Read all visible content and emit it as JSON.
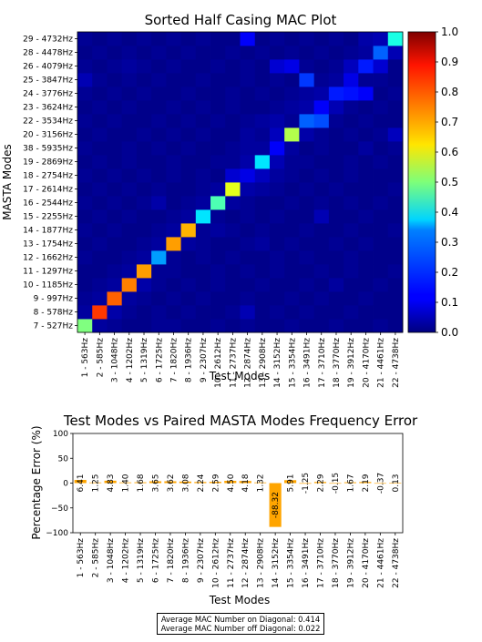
{
  "chart_data": [
    {
      "type": "heatmap",
      "title": "Sorted Half Casing MAC Plot",
      "xlabel": "Test Modes",
      "ylabel": "MASTA Modes",
      "x_categories": [
        "1 - 563Hz",
        "2 - 585Hz",
        "3 - 1048Hz",
        "4 - 1202Hz",
        "5 - 1319Hz",
        "6 - 1725Hz",
        "7 - 1820Hz",
        "8 - 1936Hz",
        "9 - 2307Hz",
        "10 - 2612Hz",
        "11 - 2737Hz",
        "12 - 2874Hz",
        "13 - 2908Hz",
        "14 - 3152Hz",
        "15 - 3354Hz",
        "16 - 3491Hz",
        "17 - 3710Hz",
        "18 - 3770Hz",
        "19 - 3912Hz",
        "20 - 4170Hz",
        "21 - 4461Hz",
        "22 - 4738Hz"
      ],
      "y_categories": [
        "7 - 527Hz",
        "8 - 578Hz",
        "9 - 997Hz",
        "10 - 1185Hz",
        "11 - 1297Hz",
        "12 - 1662Hz",
        "13 - 1754Hz",
        "14 - 1877Hz",
        "15 - 2255Hz",
        "16 - 2544Hz",
        "17 - 2614Hz",
        "18 - 2754Hz",
        "19 - 2869Hz",
        "38 - 5935Hz",
        "20 - 3156Hz",
        "22 - 3534Hz",
        "23 - 3624Hz",
        "24 - 3776Hz",
        "25 - 3847Hz",
        "26 - 4079Hz",
        "28 - 4478Hz",
        "29 - 4732Hz"
      ],
      "values": [
        [
          0.5,
          0.03,
          0.02,
          0.01,
          0.01,
          0.02,
          0.02,
          0.01,
          0.01,
          0.02,
          0.01,
          0.02,
          0.01,
          0.01,
          0.02,
          0.01,
          0.01,
          0.02,
          0.01,
          0.01,
          0.02,
          0.01
        ],
        [
          0.03,
          0.82,
          0.04,
          0.02,
          0.01,
          0.02,
          0.01,
          0.02,
          0.01,
          0.01,
          0.02,
          0.05,
          0.01,
          0.02,
          0.01,
          0.02,
          0.01,
          0.01,
          0.02,
          0.01,
          0.01,
          0.01
        ],
        [
          0.02,
          0.03,
          0.78,
          0.03,
          0.02,
          0.01,
          0.02,
          0.01,
          0.02,
          0.01,
          0.01,
          0.02,
          0.01,
          0.01,
          0.02,
          0.01,
          0.02,
          0.01,
          0.01,
          0.02,
          0.01,
          0.01
        ],
        [
          0.01,
          0.02,
          0.03,
          0.75,
          0.04,
          0.02,
          0.01,
          0.02,
          0.01,
          0.02,
          0.01,
          0.01,
          0.02,
          0.01,
          0.01,
          0.02,
          0.01,
          0.03,
          0.01,
          0.01,
          0.02,
          0.01
        ],
        [
          0.01,
          0.01,
          0.02,
          0.03,
          0.72,
          0.02,
          0.02,
          0.01,
          0.01,
          0.02,
          0.01,
          0.02,
          0.01,
          0.02,
          0.01,
          0.01,
          0.02,
          0.01,
          0.02,
          0.01,
          0.01,
          0.02
        ],
        [
          0.02,
          0.01,
          0.01,
          0.02,
          0.03,
          0.28,
          0.02,
          0.01,
          0.02,
          0.01,
          0.02,
          0.01,
          0.01,
          0.02,
          0.01,
          0.02,
          0.01,
          0.01,
          0.02,
          0.01,
          0.01,
          0.01
        ],
        [
          0.01,
          0.02,
          0.01,
          0.01,
          0.02,
          0.03,
          0.72,
          0.03,
          0.02,
          0.01,
          0.01,
          0.02,
          0.03,
          0.01,
          0.02,
          0.01,
          0.01,
          0.02,
          0.01,
          0.02,
          0.01,
          0.01
        ],
        [
          0.02,
          0.01,
          0.02,
          0.01,
          0.01,
          0.02,
          0.03,
          0.7,
          0.02,
          0.03,
          0.02,
          0.01,
          0.02,
          0.01,
          0.01,
          0.02,
          0.01,
          0.01,
          0.02,
          0.01,
          0.01,
          0.02
        ],
        [
          0.01,
          0.02,
          0.01,
          0.02,
          0.01,
          0.01,
          0.02,
          0.03,
          0.35,
          0.02,
          0.01,
          0.02,
          0.01,
          0.02,
          0.01,
          0.01,
          0.05,
          0.01,
          0.01,
          0.02,
          0.01,
          0.01
        ],
        [
          0.02,
          0.01,
          0.02,
          0.01,
          0.02,
          0.04,
          0.01,
          0.02,
          0.03,
          0.45,
          0.03,
          0.02,
          0.01,
          0.01,
          0.02,
          0.01,
          0.02,
          0.01,
          0.02,
          0.01,
          0.02,
          0.01
        ],
        [
          0.01,
          0.02,
          0.01,
          0.02,
          0.01,
          0.02,
          0.01,
          0.01,
          0.02,
          0.03,
          0.6,
          0.04,
          0.03,
          0.02,
          0.01,
          0.02,
          0.01,
          0.02,
          0.01,
          0.01,
          0.01,
          0.02
        ],
        [
          0.02,
          0.01,
          0.02,
          0.01,
          0.02,
          0.01,
          0.02,
          0.01,
          0.02,
          0.01,
          0.08,
          0.1,
          0.06,
          0.03,
          0.02,
          0.01,
          0.02,
          0.01,
          0.02,
          0.01,
          0.01,
          0.01
        ],
        [
          0.01,
          0.02,
          0.01,
          0.02,
          0.01,
          0.01,
          0.02,
          0.01,
          0.01,
          0.02,
          0.02,
          0.04,
          0.35,
          0.05,
          0.02,
          0.02,
          0.01,
          0.01,
          0.02,
          0.01,
          0.02,
          0.01
        ],
        [
          0.02,
          0.01,
          0.01,
          0.02,
          0.01,
          0.02,
          0.01,
          0.02,
          0.01,
          0.01,
          0.02,
          0.03,
          0.03,
          0.12,
          0.03,
          0.01,
          0.02,
          0.01,
          0.01,
          0.03,
          0.01,
          0.02
        ],
        [
          0.01,
          0.02,
          0.01,
          0.01,
          0.02,
          0.01,
          0.02,
          0.01,
          0.02,
          0.01,
          0.01,
          0.03,
          0.02,
          0.06,
          0.55,
          0.04,
          0.02,
          0.01,
          0.02,
          0.01,
          0.02,
          0.06
        ],
        [
          0.02,
          0.01,
          0.02,
          0.01,
          0.01,
          0.02,
          0.01,
          0.02,
          0.01,
          0.02,
          0.01,
          0.02,
          0.03,
          0.04,
          0.02,
          0.22,
          0.2,
          0.02,
          0.01,
          0.02,
          0.01,
          0.01
        ],
        [
          0.01,
          0.02,
          0.01,
          0.02,
          0.01,
          0.01,
          0.02,
          0.01,
          0.02,
          0.01,
          0.02,
          0.01,
          0.01,
          0.02,
          0.03,
          0.04,
          0.12,
          0.05,
          0.02,
          0.01,
          0.02,
          0.01
        ],
        [
          0.02,
          0.01,
          0.02,
          0.01,
          0.02,
          0.01,
          0.01,
          0.02,
          0.01,
          0.01,
          0.02,
          0.01,
          0.02,
          0.01,
          0.02,
          0.03,
          0.04,
          0.15,
          0.14,
          0.12,
          0.01,
          0.02
        ],
        [
          0.05,
          0.02,
          0.01,
          0.02,
          0.01,
          0.02,
          0.01,
          0.01,
          0.02,
          0.01,
          0.01,
          0.02,
          0.01,
          0.02,
          0.01,
          0.18,
          0.02,
          0.03,
          0.1,
          0.02,
          0.02,
          0.01
        ],
        [
          0.02,
          0.01,
          0.02,
          0.03,
          0.02,
          0.01,
          0.02,
          0.01,
          0.01,
          0.02,
          0.01,
          0.02,
          0.01,
          0.08,
          0.1,
          0.02,
          0.01,
          0.02,
          0.06,
          0.15,
          0.08,
          0.01
        ],
        [
          0.01,
          0.02,
          0.01,
          0.02,
          0.01,
          0.02,
          0.01,
          0.02,
          0.01,
          0.01,
          0.02,
          0.01,
          0.02,
          0.01,
          0.02,
          0.01,
          0.02,
          0.01,
          0.02,
          0.03,
          0.22,
          0.05
        ],
        [
          0.02,
          0.01,
          0.02,
          0.01,
          0.02,
          0.01,
          0.02,
          0.01,
          0.02,
          0.01,
          0.01,
          0.12,
          0.01,
          0.02,
          0.01,
          0.02,
          0.01,
          0.02,
          0.01,
          0.04,
          0.05,
          0.4
        ]
      ],
      "colorbar": {
        "min": 0.0,
        "max": 1.0,
        "ticks": [
          "0.0",
          "0.1",
          "0.2",
          "0.3",
          "0.4",
          "0.5",
          "0.6",
          "0.7",
          "0.8",
          "0.9",
          "1.0"
        ]
      }
    },
    {
      "type": "bar",
      "title": "Test Modes vs Paired MASTA Modes Frequency Error",
      "xlabel": "Test Modes",
      "ylabel": "Percentage Error (%)",
      "ylim": [
        -100,
        100
      ],
      "yticks": [
        "100",
        "50",
        "0",
        "−50",
        "−100"
      ],
      "categories": [
        "1 - 563Hz",
        "2 - 585Hz",
        "3 - 1048Hz",
        "4 - 1202Hz",
        "5 - 1319Hz",
        "6 - 1725Hz",
        "7 - 1820Hz",
        "8 - 1936Hz",
        "9 - 2307Hz",
        "10 - 2612Hz",
        "11 - 2737Hz",
        "12 - 2874Hz",
        "13 - 2908Hz",
        "14 - 3152Hz",
        "15 - 3354Hz",
        "16 - 3491Hz",
        "17 - 3710Hz",
        "18 - 3770Hz",
        "19 - 3912Hz",
        "20 - 4170Hz",
        "21 - 4461Hz",
        "22 - 4738Hz"
      ],
      "values": [
        6.41,
        1.25,
        4.83,
        1.4,
        1.68,
        3.65,
        3.62,
        3.08,
        2.24,
        2.59,
        4.5,
        4.18,
        1.32,
        -88.32,
        5.91,
        -1.25,
        2.29,
        -0.15,
        1.67,
        2.19,
        -0.37,
        0.13
      ],
      "labels": [
        "6.41",
        "1.25",
        "4.83",
        "1.40",
        "1.68",
        "3.65",
        "3.62",
        "3.08",
        "2.24",
        "2.59",
        "4.50",
        "4.18",
        "1.32",
        "-88.32",
        "5.91",
        "-1.25",
        "2.29",
        "-0.15",
        "1.67",
        "2.19",
        "-0.37",
        "0.13"
      ],
      "bar_color": "#ffa500",
      "grid": false
    }
  ],
  "summary": {
    "line1": "Average MAC Number on Diagonal: 0.414",
    "line2": "Average MAC Number off Diagonal: 0.022"
  }
}
